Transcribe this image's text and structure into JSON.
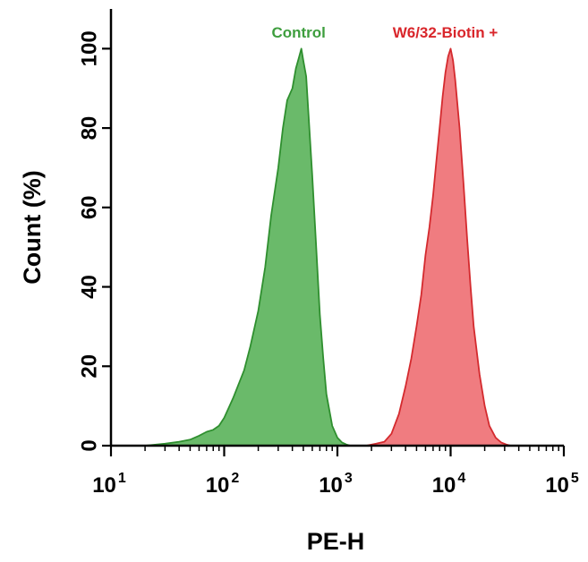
{
  "chart_data": {
    "type": "area",
    "title": "",
    "xlabel": "PE-H",
    "ylabel": "Count  (%)",
    "xscale": "log",
    "xlim": [
      10,
      100000
    ],
    "ylim": [
      0,
      110
    ],
    "grid": false,
    "legend_placement": "top, labels above peaks",
    "x_tick_labels": [
      {
        "base": "10",
        "exp": "1"
      },
      {
        "base": "10",
        "exp": "2"
      },
      {
        "base": "10",
        "exp": "3"
      },
      {
        "base": "10",
        "exp": "4"
      },
      {
        "base": "10",
        "exp": "5"
      }
    ],
    "x_ticks": [
      10,
      100,
      1000,
      10000,
      100000
    ],
    "y_ticks": [
      0,
      20,
      40,
      60,
      80,
      100
    ],
    "series": [
      {
        "name": "Control",
        "fill": "#6aba6a",
        "stroke": "#2f8f2f",
        "label_color": "#3e9e3e",
        "x": [
          20,
          30,
          40,
          50,
          60,
          70,
          80,
          90,
          100,
          120,
          150,
          170,
          200,
          230,
          260,
          300,
          330,
          360,
          400,
          430,
          460,
          480,
          500,
          530,
          560,
          600,
          650,
          700,
          750,
          800,
          900,
          1000,
          1100,
          1200,
          1300
        ],
        "y": [
          0,
          0.5,
          1,
          1.5,
          2.5,
          3.5,
          4,
          5,
          7,
          12,
          19,
          25,
          34,
          45,
          58,
          70,
          80,
          87,
          90,
          95,
          98,
          100,
          97,
          93,
          82,
          68,
          50,
          33,
          22,
          13,
          5,
          2,
          0.8,
          0.3,
          0
        ]
      },
      {
        "name": "W6/32-Biotin +",
        "fill": "#f07c80",
        "stroke": "#d42a2e",
        "label_color": "#d9262b",
        "x": [
          1800,
          2200,
          2600,
          3000,
          3500,
          4000,
          4500,
          5000,
          5500,
          6000,
          6500,
          7000,
          7500,
          8000,
          8500,
          9000,
          9500,
          10000,
          10500,
          11000,
          12000,
          13000,
          14000,
          15000,
          16000,
          18000,
          20000,
          22000,
          25000,
          28000,
          31000,
          34000
        ],
        "y": [
          0,
          0.5,
          1,
          3,
          8,
          15,
          22,
          30,
          38,
          48,
          55,
          63,
          72,
          80,
          88,
          94,
          98,
          100,
          97,
          92,
          80,
          66,
          52,
          40,
          30,
          18,
          10,
          5,
          2,
          0.8,
          0.3,
          0
        ]
      }
    ]
  }
}
